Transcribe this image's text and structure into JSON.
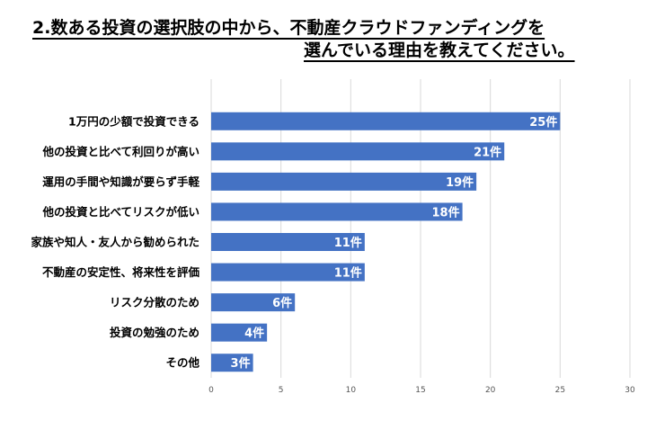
{
  "chart_data": {
    "type": "bar",
    "orientation": "horizontal",
    "title_lines": [
      "2.数ある投資の選択肢の中から、不動産クラウドファンディングを",
      "選んでいる理由を教えてください。"
    ],
    "categories": [
      "1万円の少額で投資できる",
      "他の投資と比べて利回りが高い",
      "運用の手間や知識が要らず手軽",
      "他の投資と比べてリスクが低い",
      "家族や知人・友人から勧められた",
      "不動産の安定性、将来性を評価",
      "リスク分散のため",
      "投資の勉強のため",
      "その他"
    ],
    "values": [
      25,
      21,
      19,
      18,
      11,
      11,
      6,
      4,
      3
    ],
    "value_labels": [
      "25件",
      "21件",
      "19件",
      "18件",
      "11件",
      "11件",
      "6件",
      "4件",
      "3件"
    ],
    "xlim": [
      0,
      30
    ],
    "xticks": [
      "0",
      "5",
      "10",
      "15",
      "20",
      "25",
      "30"
    ],
    "grid": "vertical",
    "bar_color": "#4472c4"
  }
}
